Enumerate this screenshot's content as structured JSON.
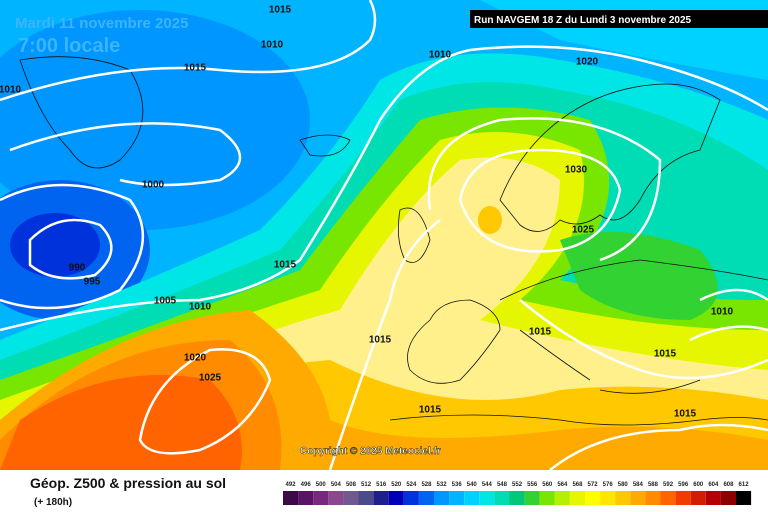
{
  "header": {
    "title": "Mardi 11 novembre 2025",
    "subtitle": "7:00 locale",
    "run": "Run NAVGEM 18 Z du Lundi 3 novembre 2025"
  },
  "isobar_labels": [
    1015,
    1010,
    1010,
    1020,
    1015,
    1010,
    1030,
    1000,
    1025,
    1015,
    990,
    995,
    1005,
    1010,
    1015,
    1015,
    1010,
    1020,
    1025,
    1015,
    1015,
    1015
  ],
  "copyright": "Copyright © 2025 Meteociel.fr",
  "legend": {
    "title": "Géop. Z500 & pression au sol",
    "lead": "(+ 180h)",
    "scale": [
      {
        "value": 492,
        "color": "#3c0a46"
      },
      {
        "value": 496,
        "color": "#5a1464"
      },
      {
        "value": 500,
        "color": "#78287d"
      },
      {
        "value": 504,
        "color": "#8c468c"
      },
      {
        "value": 508,
        "color": "#6e5a8c"
      },
      {
        "value": 512,
        "color": "#4b4b8c"
      },
      {
        "value": 516,
        "color": "#1e1e8c"
      },
      {
        "value": 520,
        "color": "#0000b4"
      },
      {
        "value": 524,
        "color": "#0032dc"
      },
      {
        "value": 528,
        "color": "#0064f0"
      },
      {
        "value": 532,
        "color": "#0096ff"
      },
      {
        "value": 536,
        "color": "#00b4ff"
      },
      {
        "value": 540,
        "color": "#00d2ff"
      },
      {
        "value": 544,
        "color": "#00e6e6"
      },
      {
        "value": 548,
        "color": "#00dcb4"
      },
      {
        "value": 552,
        "color": "#00c878"
      },
      {
        "value": 556,
        "color": "#32d232"
      },
      {
        "value": 560,
        "color": "#78e600"
      },
      {
        "value": 564,
        "color": "#b4f000"
      },
      {
        "value": 568,
        "color": "#e6f500"
      },
      {
        "value": 572,
        "color": "#ffff00"
      },
      {
        "value": 576,
        "color": "#ffe600"
      },
      {
        "value": 580,
        "color": "#ffc800"
      },
      {
        "value": 584,
        "color": "#ffaa00"
      },
      {
        "value": 588,
        "color": "#ff8c00"
      },
      {
        "value": 592,
        "color": "#ff6400"
      },
      {
        "value": 596,
        "color": "#f03c00"
      },
      {
        "value": 600,
        "color": "#d21e00"
      },
      {
        "value": 604,
        "color": "#b40000"
      },
      {
        "value": 608,
        "color": "#8c0000"
      },
      {
        "value": 612,
        "color": "#000000"
      }
    ]
  }
}
